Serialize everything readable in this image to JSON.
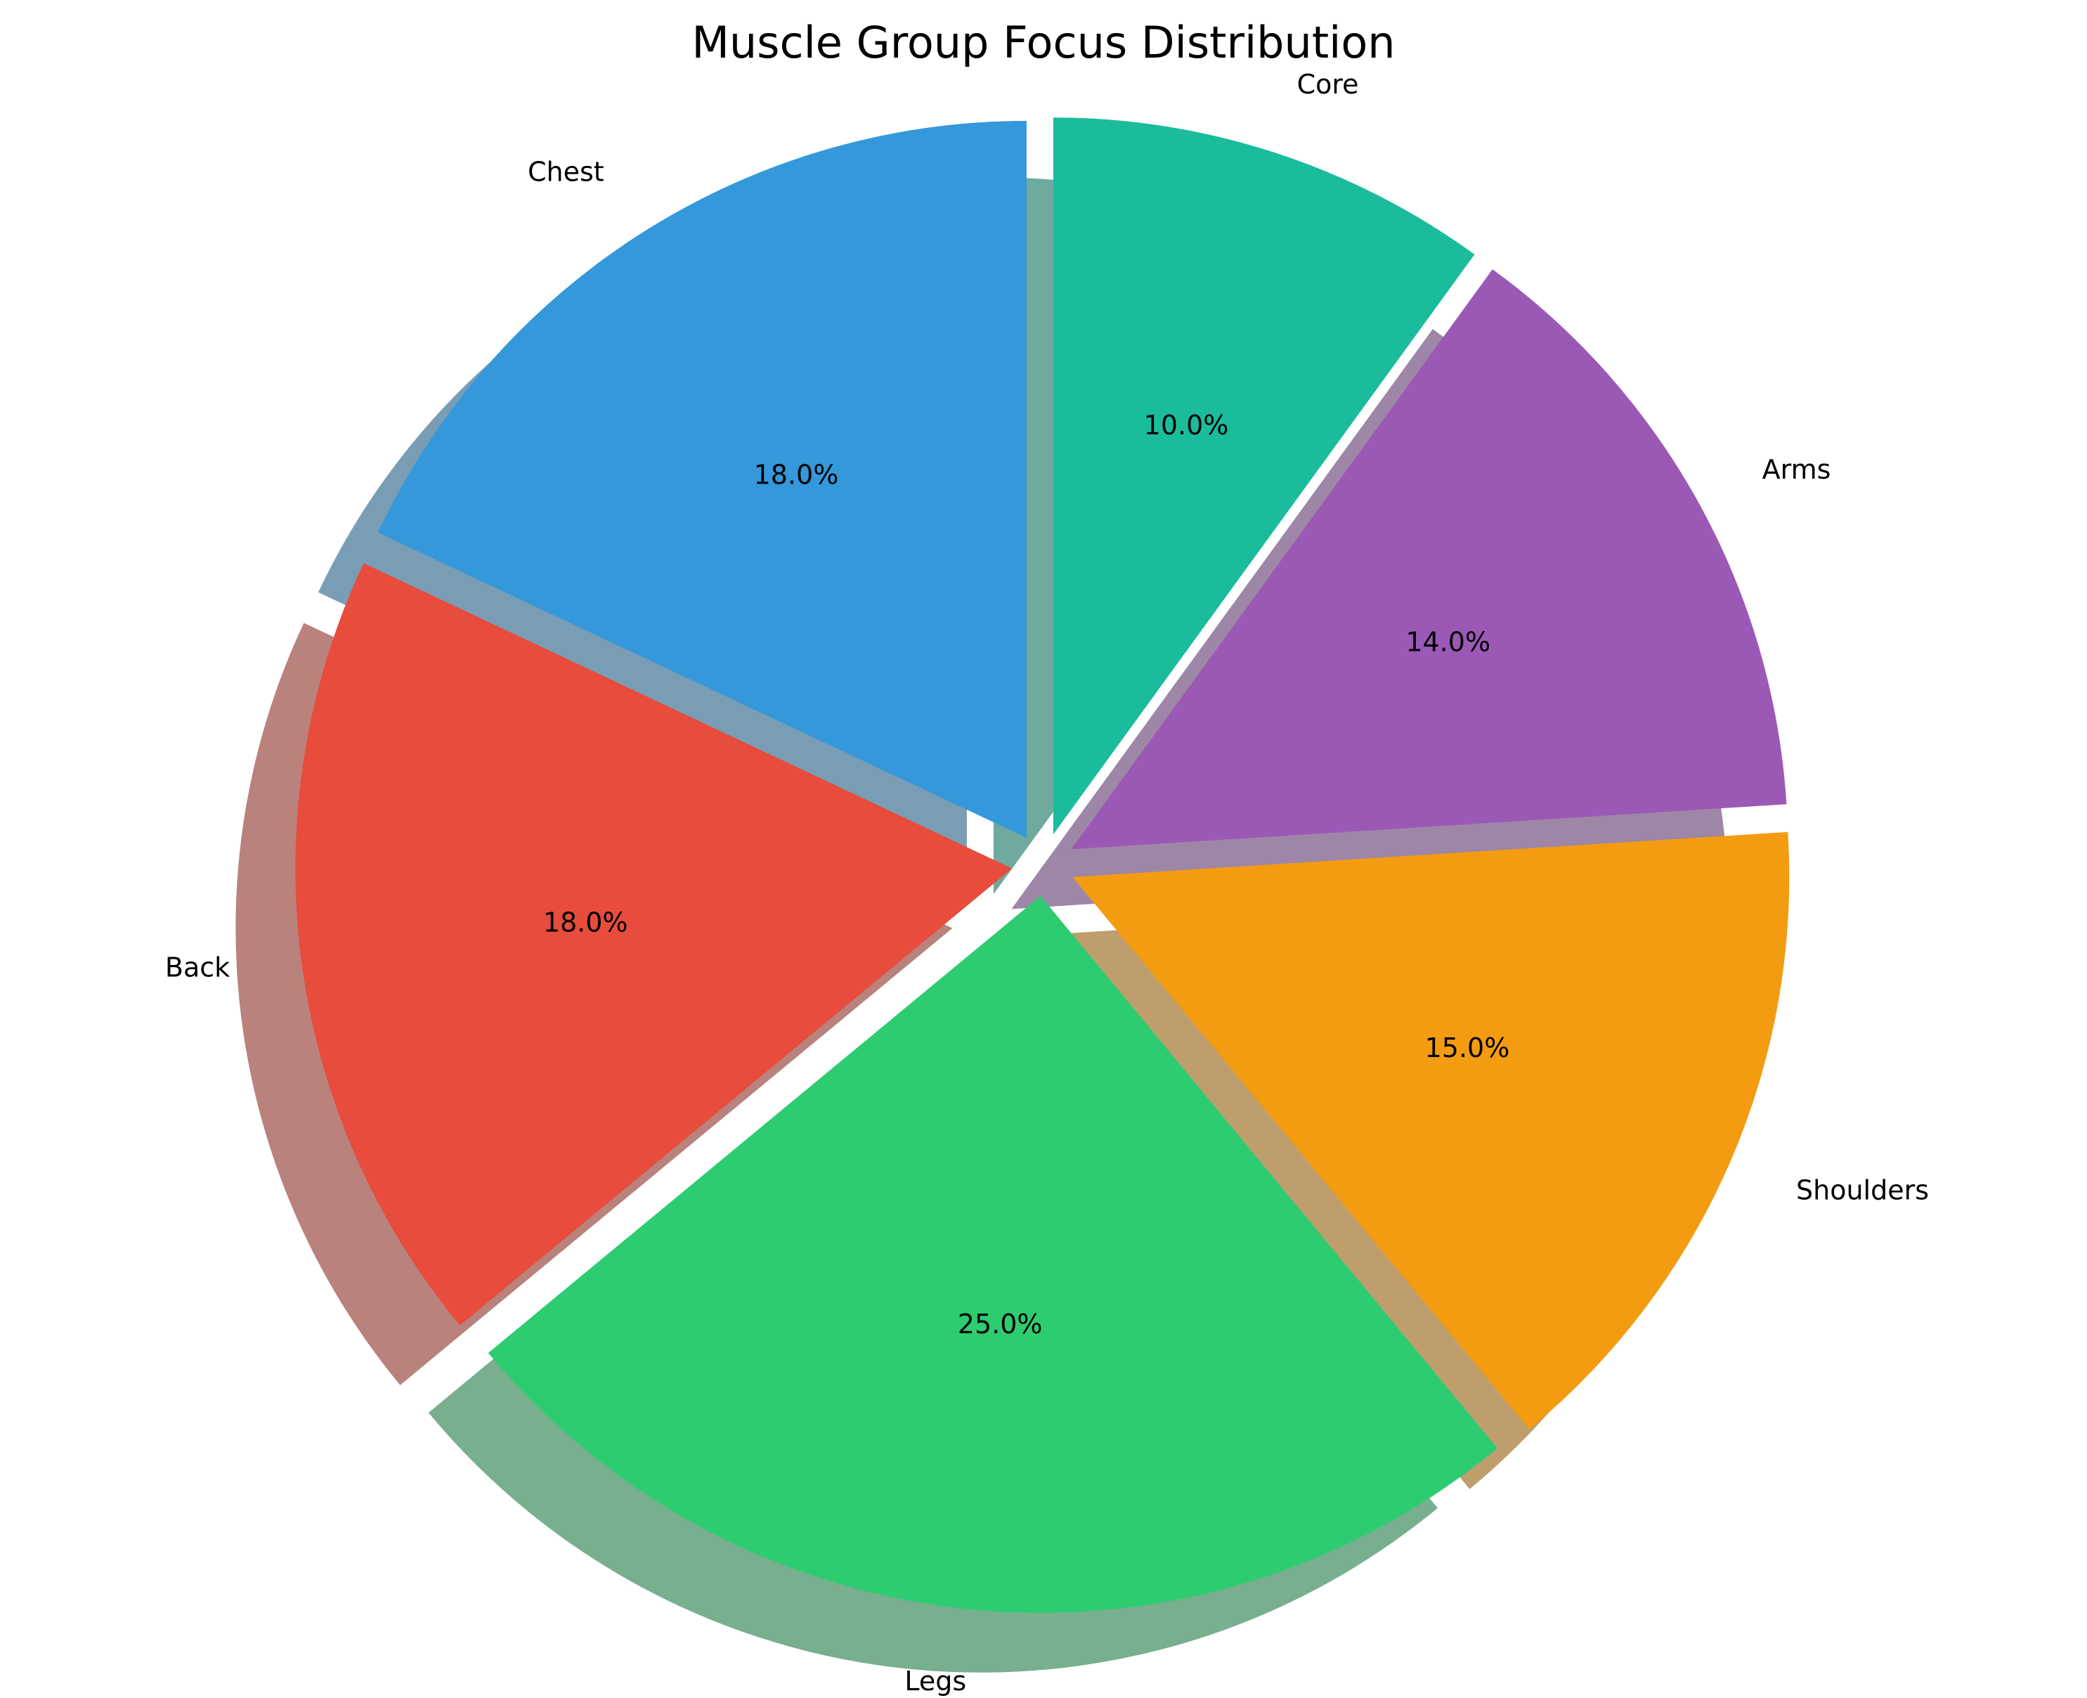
{
  "chart_data": {
    "type": "pie",
    "title": "Muscle Group Focus Distribution",
    "slices": [
      {
        "label": "Chest",
        "value": 18.0,
        "pct_text": "18.0%",
        "color": "#3498db",
        "exploded": true
      },
      {
        "label": "Back",
        "value": 18.0,
        "pct_text": "18.0%",
        "color": "#e74c3c",
        "exploded": true
      },
      {
        "label": "Legs",
        "value": 25.0,
        "pct_text": "25.0%",
        "color": "#2ecc71",
        "exploded": true
      },
      {
        "label": "Shoulders",
        "value": 15.0,
        "pct_text": "15.0%",
        "color": "#f39c12",
        "exploded": true
      },
      {
        "label": "Arms",
        "value": 14.0,
        "pct_text": "14.0%",
        "color": "#9b59b6",
        "exploded": true
      },
      {
        "label": "Core",
        "value": 10.0,
        "pct_text": "10.0%",
        "color": "#1abc9c",
        "exploded": true
      }
    ],
    "start_angle_deg": 90,
    "direction": "counterclockwise",
    "shadow": true,
    "legend": "none"
  }
}
